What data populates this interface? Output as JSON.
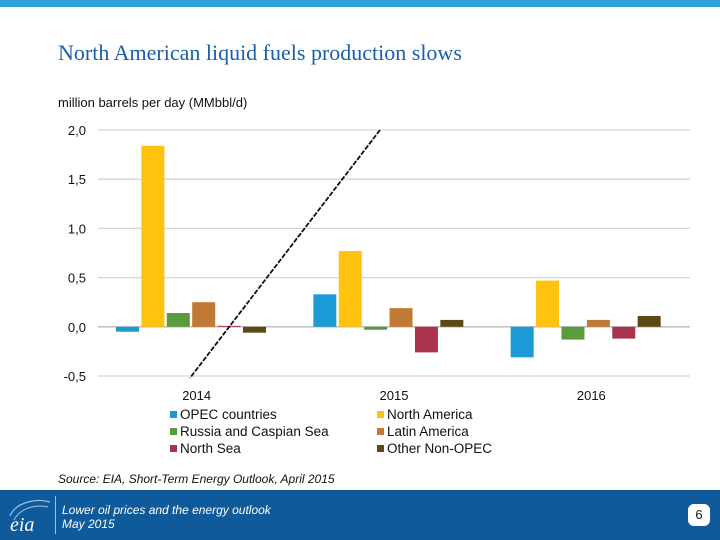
{
  "slide": {
    "title": "North American liquid fuels production slows",
    "unit_label": "million barrels per day (MMbbl/d)",
    "source": "Source: EIA, Short-Term Energy Outlook, April 2015",
    "footer_line1": "Lower oil prices and the energy outlook",
    "footer_line2": "May 2015",
    "logo_text": "eia",
    "page_number": "6"
  },
  "colors": {
    "accent": "#2d9fd9",
    "footer": "#0f5a9a",
    "title": "#1a5fa8"
  },
  "chart_data": {
    "type": "bar",
    "title": "North American liquid fuels production slows",
    "ylabel": "million barrels per day (MMbbl/d)",
    "xlabel": "",
    "categories": [
      "2014",
      "2015",
      "2016"
    ],
    "ylim": [
      -0.5,
      2.0
    ],
    "yticks": [
      2.0,
      1.5,
      1.0,
      0.5,
      0.0,
      -0.5
    ],
    "ytick_labels": [
      "2,0",
      "1,5",
      "1,0",
      "0,5",
      "0,0",
      "-0,5"
    ],
    "grid": true,
    "legend_position": "bottom",
    "series": [
      {
        "name": "OPEC countries",
        "color": "#1b9ad6",
        "values": [
          -0.05,
          0.33,
          -0.31
        ]
      },
      {
        "name": "North America",
        "color": "#ffc20e",
        "values": [
          1.84,
          0.77,
          0.47
        ]
      },
      {
        "name": "Russia and Caspian Sea",
        "color": "#5a9b3c",
        "values": [
          0.14,
          -0.03,
          -0.13
        ]
      },
      {
        "name": "Latin America",
        "color": "#c07a35",
        "values": [
          0.25,
          0.19,
          0.07
        ]
      },
      {
        "name": "North Sea",
        "color": "#a9344c",
        "values": [
          0.01,
          -0.26,
          -0.12
        ]
      },
      {
        "name": "Other Non-OPEC",
        "color": "#5c4a14",
        "values": [
          -0.06,
          0.07,
          0.11
        ]
      }
    ]
  }
}
